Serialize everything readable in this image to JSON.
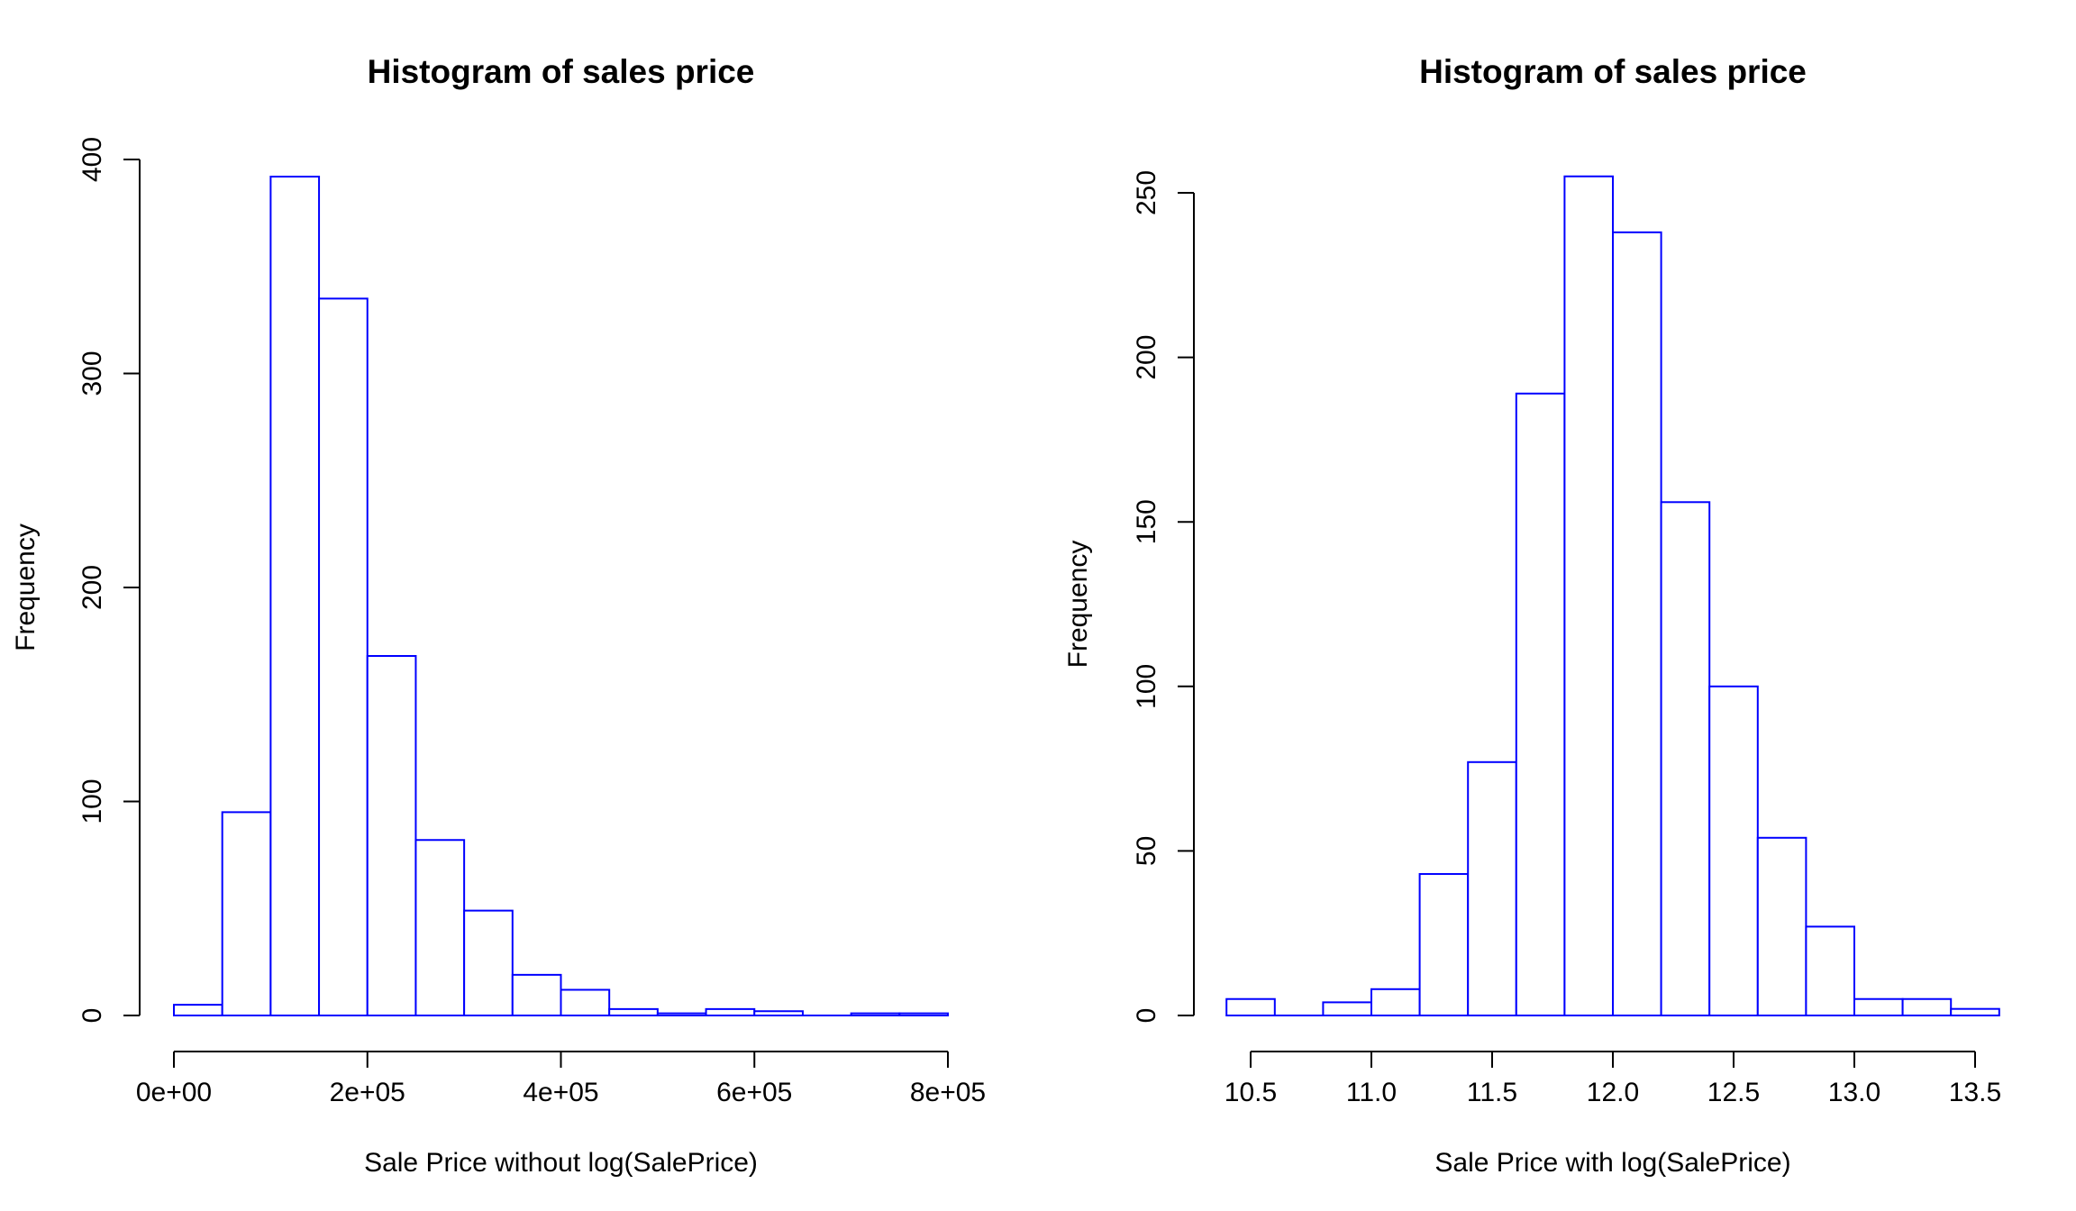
{
  "colors": {
    "bar_stroke": "#0000ff",
    "bar_fill": "#ffffff",
    "axis": "#000000"
  },
  "chart_data": [
    {
      "type": "bar",
      "title": "Histogram of sales price",
      "xlabel": "Sale Price without log(SalePrice)",
      "ylabel": "Frequency",
      "bin_edges": [
        0,
        50000,
        100000,
        150000,
        200000,
        250000,
        300000,
        350000,
        400000,
        450000,
        500000,
        550000,
        600000,
        650000,
        700000,
        750000,
        800000
      ],
      "values": [
        5,
        95,
        392,
        335,
        168,
        82,
        49,
        19,
        12,
        3,
        1,
        3,
        2,
        0,
        1,
        1
      ],
      "xlim": [
        0,
        800000
      ],
      "ylim": [
        0,
        400
      ],
      "x_ticks": [
        {
          "value": 0,
          "label": "0e+00"
        },
        {
          "value": 200000,
          "label": "2e+05"
        },
        {
          "value": 400000,
          "label": "4e+05"
        },
        {
          "value": 600000,
          "label": "6e+05"
        },
        {
          "value": 800000,
          "label": "8e+05"
        }
      ],
      "y_ticks": [
        {
          "value": 0,
          "label": "0"
        },
        {
          "value": 100,
          "label": "100"
        },
        {
          "value": 200,
          "label": "200"
        },
        {
          "value": 300,
          "label": "300"
        },
        {
          "value": 400,
          "label": "400"
        }
      ],
      "grid": false
    },
    {
      "type": "bar",
      "title": "Histogram of sales price",
      "xlabel": "Sale Price with log(SalePrice)",
      "ylabel": "Frequency",
      "bin_edges": [
        10.4,
        10.6,
        10.8,
        11.0,
        11.2,
        11.4,
        11.6,
        11.8,
        12.0,
        12.2,
        12.4,
        12.6,
        12.8,
        13.0,
        13.2,
        13.4,
        13.6
      ],
      "values": [
        5,
        0,
        4,
        8,
        43,
        77,
        189,
        255,
        238,
        156,
        100,
        54,
        27,
        5,
        5,
        2
      ],
      "xlim": [
        10.5,
        13.5
      ],
      "ylim": [
        0,
        250
      ],
      "x_ticks": [
        {
          "value": 10.5,
          "label": "10.5"
        },
        {
          "value": 11.0,
          "label": "11.0"
        },
        {
          "value": 11.5,
          "label": "11.5"
        },
        {
          "value": 12.0,
          "label": "12.0"
        },
        {
          "value": 12.5,
          "label": "12.5"
        },
        {
          "value": 13.0,
          "label": "13.0"
        },
        {
          "value": 13.5,
          "label": "13.5"
        }
      ],
      "y_ticks": [
        {
          "value": 0,
          "label": "0"
        },
        {
          "value": 50,
          "label": "50"
        },
        {
          "value": 100,
          "label": "100"
        },
        {
          "value": 150,
          "label": "150"
        },
        {
          "value": 200,
          "label": "200"
        },
        {
          "value": 250,
          "label": "250"
        }
      ],
      "grid": false
    }
  ]
}
